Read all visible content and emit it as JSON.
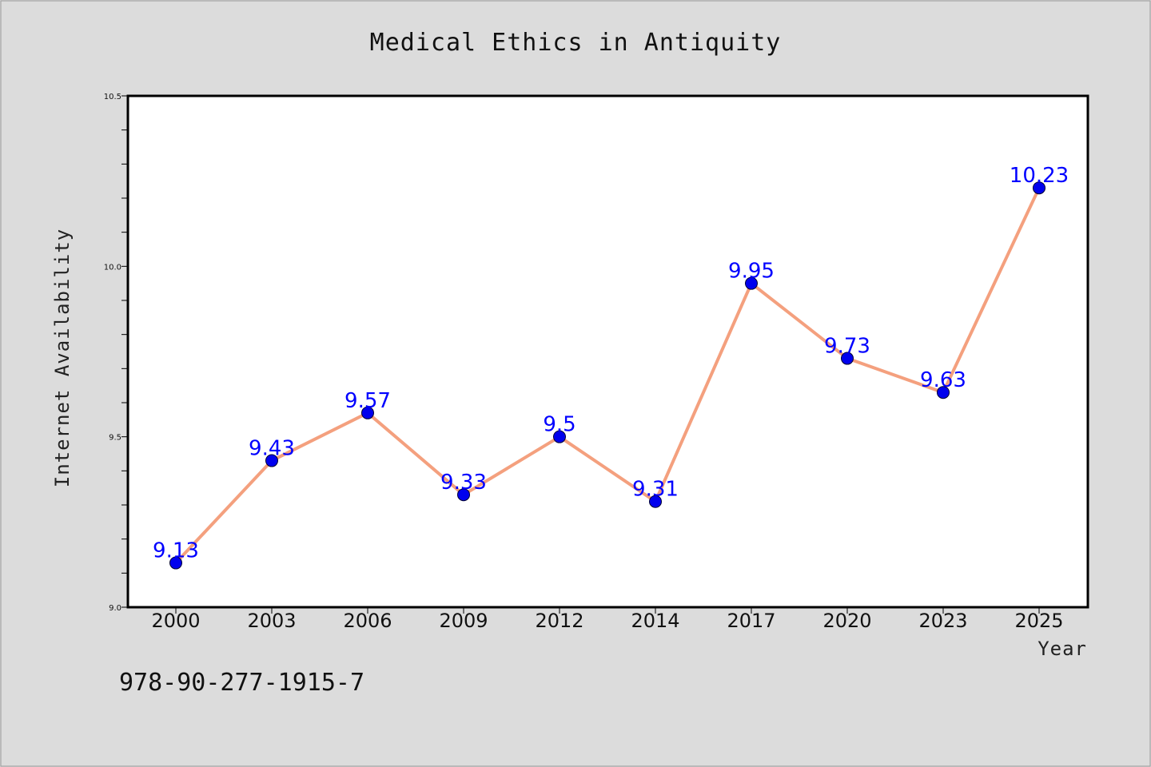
{
  "chart_data": {
    "type": "line",
    "title": "Medical Ethics in Antiquity",
    "xlabel": "Year",
    "ylabel": "Internet Availability",
    "categories": [
      "2000",
      "2003",
      "2006",
      "2009",
      "2012",
      "2014",
      "2017",
      "2020",
      "2023",
      "2025"
    ],
    "series": [
      {
        "values": [
          9.13,
          9.43,
          9.57,
          9.33,
          9.5,
          9.31,
          9.95,
          9.73,
          9.63,
          10.23
        ],
        "labels": [
          "9.13",
          "9.43",
          "9.57",
          "9.33",
          "9.5",
          "9.31",
          "9.95",
          "9.73",
          "9.63",
          "10.23"
        ]
      }
    ],
    "ylim": [
      9.0,
      10.5
    ],
    "yticks": [
      "9.0",
      "9.5",
      "10.0",
      "10.5"
    ],
    "yticks_values": [
      9.0,
      9.5,
      10.0,
      10.5
    ],
    "y_minor_step": 0.1,
    "grid": false,
    "legend": "none",
    "colors": {
      "line": "#f4a07e",
      "marker": "#0000ee",
      "data_label": "#0000ff",
      "background": "#dcdcdc",
      "plot_area": "#ffffff"
    }
  },
  "footnote": "978-90-277-1915-7"
}
